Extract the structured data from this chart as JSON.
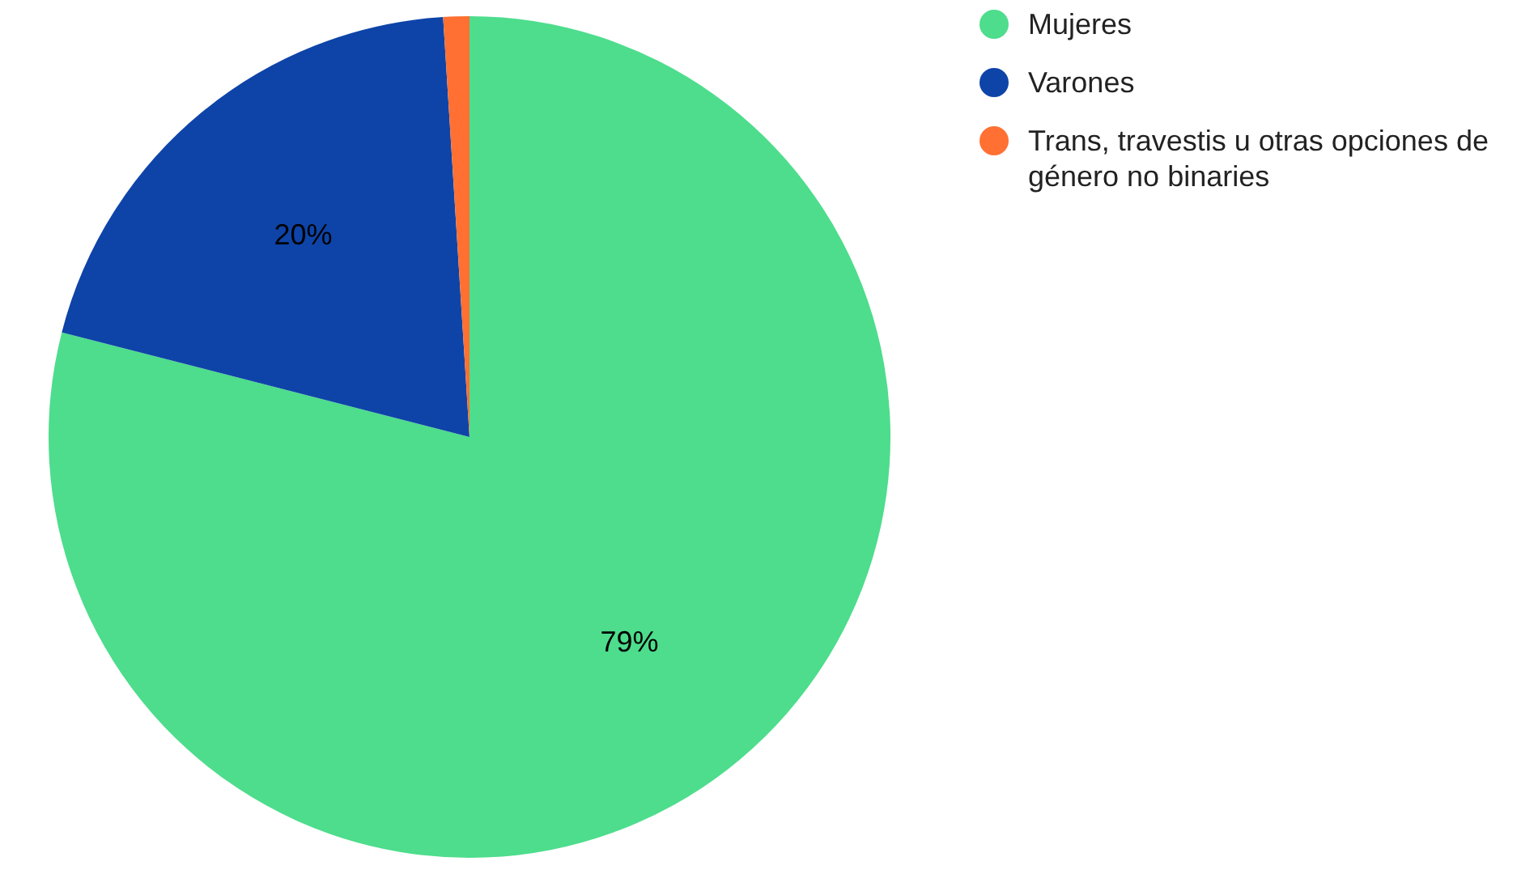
{
  "chart_data": {
    "type": "pie",
    "categories": [
      "Mujeres",
      "Varones",
      "Trans, travestis u otras opciones de género no binaries"
    ],
    "values": [
      79,
      20,
      1
    ],
    "colors": [
      "#4ddd8c",
      "#0e44a8",
      "#ff7032"
    ],
    "value_labels": [
      "79%",
      "20%",
      null
    ],
    "legend": "top right"
  }
}
